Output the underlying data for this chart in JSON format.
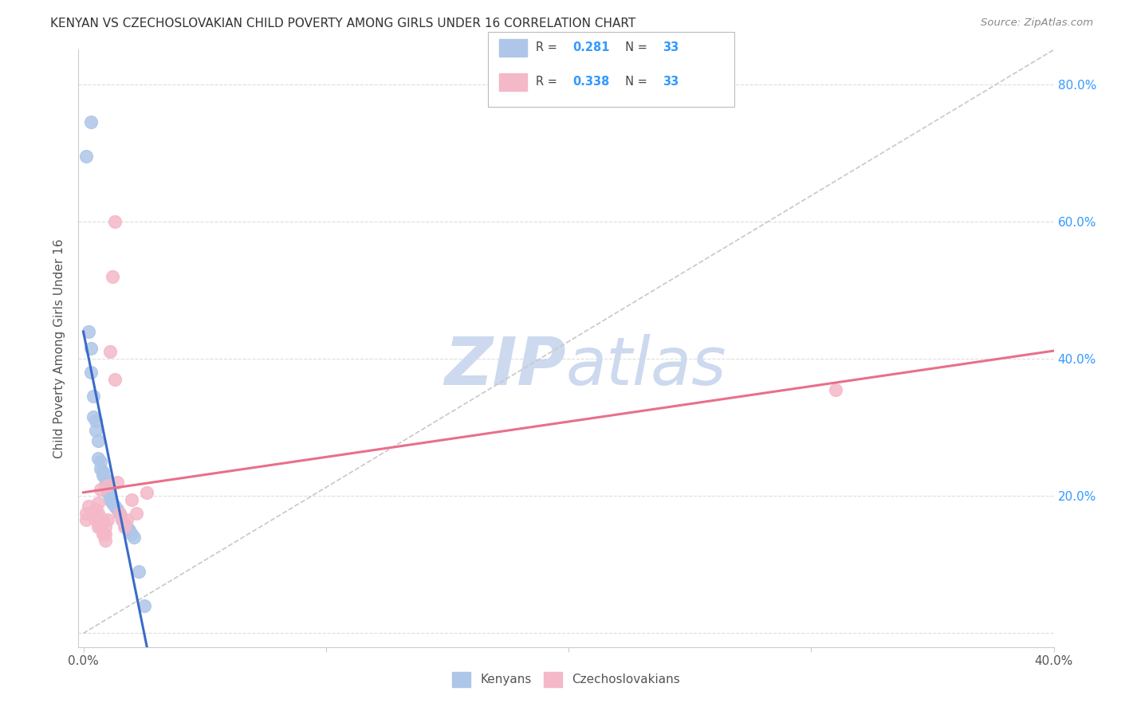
{
  "title": "KENYAN VS CZECHOSLOVAKIAN CHILD POVERTY AMONG GIRLS UNDER 16 CORRELATION CHART",
  "source": "Source: ZipAtlas.com",
  "ylabel": "Child Poverty Among Girls Under 16",
  "xlim": [
    -0.002,
    0.4
  ],
  "ylim": [
    -0.02,
    0.85
  ],
  "xtick_labels": [
    "0.0%",
    "",
    "",
    "",
    "40.0%"
  ],
  "xtick_values": [
    0.0,
    0.1,
    0.2,
    0.3,
    0.4
  ],
  "ytick_values": [
    0.0,
    0.2,
    0.4,
    0.6,
    0.8
  ],
  "ytick_labels_right": [
    "",
    "20.0%",
    "40.0%",
    "60.0%",
    "80.0%"
  ],
  "legend_r_values": [
    "0.281",
    "0.338"
  ],
  "legend_n_values": [
    "33",
    "33"
  ],
  "kenyan_scatter": [
    [
      0.001,
      0.695
    ],
    [
      0.003,
      0.745
    ],
    [
      0.002,
      0.44
    ],
    [
      0.003,
      0.415
    ],
    [
      0.003,
      0.38
    ],
    [
      0.004,
      0.345
    ],
    [
      0.004,
      0.315
    ],
    [
      0.005,
      0.31
    ],
    [
      0.005,
      0.295
    ],
    [
      0.006,
      0.28
    ],
    [
      0.006,
      0.255
    ],
    [
      0.007,
      0.25
    ],
    [
      0.007,
      0.24
    ],
    [
      0.008,
      0.235
    ],
    [
      0.008,
      0.23
    ],
    [
      0.009,
      0.225
    ],
    [
      0.009,
      0.215
    ],
    [
      0.01,
      0.21
    ],
    [
      0.01,
      0.205
    ],
    [
      0.011,
      0.2
    ],
    [
      0.011,
      0.195
    ],
    [
      0.012,
      0.19
    ],
    [
      0.013,
      0.185
    ],
    [
      0.014,
      0.18
    ],
    [
      0.015,
      0.175
    ],
    [
      0.016,
      0.165
    ],
    [
      0.017,
      0.16
    ],
    [
      0.018,
      0.155
    ],
    [
      0.019,
      0.15
    ],
    [
      0.02,
      0.145
    ],
    [
      0.021,
      0.14
    ],
    [
      0.023,
      0.09
    ],
    [
      0.025,
      0.04
    ]
  ],
  "czechoslovakian_scatter": [
    [
      0.001,
      0.175
    ],
    [
      0.001,
      0.165
    ],
    [
      0.002,
      0.185
    ],
    [
      0.003,
      0.175
    ],
    [
      0.004,
      0.17
    ],
    [
      0.005,
      0.18
    ],
    [
      0.005,
      0.165
    ],
    [
      0.006,
      0.175
    ],
    [
      0.006,
      0.19
    ],
    [
      0.006,
      0.155
    ],
    [
      0.007,
      0.16
    ],
    [
      0.007,
      0.155
    ],
    [
      0.007,
      0.21
    ],
    [
      0.008,
      0.165
    ],
    [
      0.008,
      0.145
    ],
    [
      0.009,
      0.155
    ],
    [
      0.009,
      0.145
    ],
    [
      0.009,
      0.135
    ],
    [
      0.01,
      0.215
    ],
    [
      0.01,
      0.165
    ],
    [
      0.011,
      0.41
    ],
    [
      0.012,
      0.52
    ],
    [
      0.013,
      0.6
    ],
    [
      0.013,
      0.37
    ],
    [
      0.014,
      0.22
    ],
    [
      0.015,
      0.175
    ],
    [
      0.016,
      0.165
    ],
    [
      0.017,
      0.155
    ],
    [
      0.018,
      0.165
    ],
    [
      0.02,
      0.195
    ],
    [
      0.022,
      0.175
    ],
    [
      0.026,
      0.205
    ],
    [
      0.31,
      0.355
    ]
  ],
  "kenyan_color": "#aec6e8",
  "czechoslovakian_color": "#f4b8c8",
  "kenyan_line_color": "#3b6bc8",
  "czechoslovakian_line_color": "#e8708a",
  "diagonal_line_color": "#c8c8c8",
  "background_color": "#ffffff",
  "grid_color": "#dddddd",
  "watermark_color": "#ccd9ee",
  "title_color": "#333333",
  "axis_label_color": "#555555",
  "right_tick_color": "#3399ff",
  "figsize": [
    14.06,
    8.92
  ],
  "dpi": 100
}
